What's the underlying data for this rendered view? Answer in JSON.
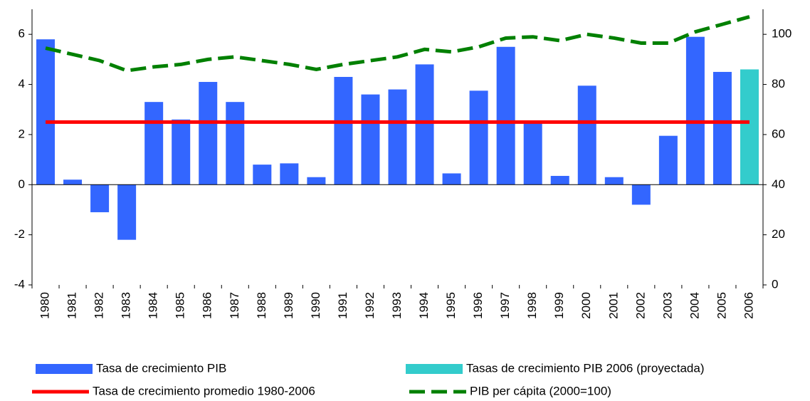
{
  "chart_data": {
    "type": "bar",
    "categories": [
      "1980",
      "1981",
      "1982",
      "1983",
      "1984",
      "1985",
      "1986",
      "1987",
      "1988",
      "1989",
      "1990",
      "1991",
      "1992",
      "1993",
      "1994",
      "1995",
      "1996",
      "1997",
      "1998",
      "1999",
      "2000",
      "2001",
      "2002",
      "2003",
      "2004",
      "2005",
      "2006"
    ],
    "series": [
      {
        "name": "Tasa de crecimiento PIB",
        "color": "#3366ff",
        "type": "bar",
        "axis": "y",
        "values": [
          5.8,
          0.2,
          -1.1,
          -2.2,
          3.3,
          2.6,
          4.1,
          3.3,
          0.8,
          0.85,
          0.3,
          4.3,
          3.6,
          3.8,
          4.8,
          0.45,
          3.75,
          5.5,
          2.5,
          0.35,
          3.95,
          0.3,
          -0.8,
          1.95,
          5.9,
          4.5,
          null
        ]
      },
      {
        "name": "Tasas de crecimiento PIB 2006 (proyectada)",
        "color": "#33cccc",
        "type": "bar",
        "axis": "y",
        "values": [
          null,
          null,
          null,
          null,
          null,
          null,
          null,
          null,
          null,
          null,
          null,
          null,
          null,
          null,
          null,
          null,
          null,
          null,
          null,
          null,
          null,
          null,
          null,
          null,
          null,
          null,
          4.6
        ]
      },
      {
        "name": "Tasa de crecimiento promedio 1980-2006",
        "color": "#ff0000",
        "type": "line",
        "axis": "y",
        "values": [
          2.5,
          2.5,
          2.5,
          2.5,
          2.5,
          2.5,
          2.5,
          2.5,
          2.5,
          2.5,
          2.5,
          2.5,
          2.5,
          2.5,
          2.5,
          2.5,
          2.5,
          2.5,
          2.5,
          2.5,
          2.5,
          2.5,
          2.5,
          2.5,
          2.5,
          2.5,
          2.5
        ]
      },
      {
        "name": "PIB per cápita (2000=100)",
        "color": "#008000",
        "type": "line",
        "dashed": true,
        "axis": "y2",
        "values": [
          94.5,
          92,
          89.5,
          85.5,
          87,
          88,
          90,
          91,
          89.5,
          88,
          86,
          88,
          89.5,
          91,
          94,
          93,
          95,
          98.5,
          99,
          97.5,
          100,
          98.5,
          96.5,
          96.5,
          101,
          104,
          107
        ]
      }
    ],
    "ylim": [
      -4,
      7
    ],
    "yticks": [
      -4,
      -2,
      0,
      2,
      4,
      6
    ],
    "y2lim": [
      0,
      110
    ],
    "y2ticks": [
      0,
      20,
      40,
      60,
      80,
      100
    ]
  }
}
